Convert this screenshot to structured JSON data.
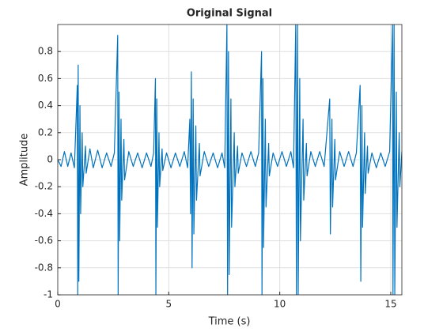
{
  "chart_data": {
    "type": "line",
    "title": "Original Signal",
    "x_label": "Time (s)",
    "y_label": "Amplitude",
    "xlim": [
      0,
      15.5
    ],
    "ylim": [
      -1,
      1
    ],
    "xticks": [
      0,
      5,
      10,
      15
    ],
    "yticks": [
      -1,
      -0.8,
      -0.6,
      -0.4,
      -0.2,
      0,
      0.2,
      0.4,
      0.6,
      0.8
    ],
    "grid": true,
    "series": [
      {
        "color": "#0072bd",
        "x": [
          0,
          0.15,
          0.3,
          0.45,
          0.6,
          0.75,
          0.88,
          0.9,
          0.92,
          0.95,
          1.0,
          1.03,
          1.1,
          1.13,
          1.25,
          1.28,
          1.45,
          1.6,
          1.8,
          2.0,
          2.2,
          2.4,
          2.55,
          2.7,
          2.72,
          2.76,
          2.79,
          2.85,
          2.88,
          2.98,
          3.01,
          3.2,
          3.4,
          3.6,
          3.8,
          4.0,
          4.2,
          4.32,
          4.4,
          4.42,
          4.46,
          4.49,
          4.56,
          4.59,
          4.7,
          4.73,
          4.9,
          5.1,
          5.3,
          5.5,
          5.7,
          5.85,
          5.95,
          5.98,
          6.02,
          6.05,
          6.1,
          6.13,
          6.22,
          6.25,
          6.38,
          6.41,
          6.6,
          6.8,
          7.0,
          7.2,
          7.4,
          7.52,
          7.62,
          7.65,
          7.69,
          7.72,
          7.8,
          7.83,
          7.95,
          7.98,
          8.1,
          8.13,
          8.3,
          8.5,
          8.7,
          8.9,
          9.05,
          9.18,
          9.2,
          9.24,
          9.27,
          9.35,
          9.38,
          9.5,
          9.53,
          9.7,
          9.9,
          10.1,
          10.3,
          10.5,
          10.62,
          10.72,
          10.75,
          10.8,
          10.83,
          10.9,
          10.93,
          11.05,
          11.08,
          11.2,
          11.23,
          11.4,
          11.6,
          11.8,
          12.0,
          12.25,
          12.28,
          12.35,
          12.38,
          12.48,
          12.51,
          12.7,
          12.9,
          13.1,
          13.3,
          13.45,
          13.62,
          13.65,
          13.7,
          13.73,
          13.82,
          13.85,
          13.95,
          13.98,
          14.15,
          14.35,
          14.55,
          14.75,
          14.95,
          15.08,
          15.1,
          15.15,
          15.18,
          15.25,
          15.28,
          15.38,
          15.41,
          15.5,
          15.55
        ],
        "values": [
          0,
          -0.05,
          0.06,
          -0.05,
          0.05,
          -0.06,
          0.55,
          -1,
          0.7,
          -0.9,
          0.4,
          -0.4,
          0.2,
          -0.2,
          0.1,
          -0.1,
          0.08,
          -0.06,
          0.07,
          -0.06,
          0.05,
          -0.05,
          0.05,
          0.92,
          -1,
          0.5,
          -0.6,
          0.3,
          -0.3,
          0.15,
          -0.15,
          0.06,
          -0.05,
          0.05,
          -0.06,
          0.05,
          -0.05,
          0.05,
          0.6,
          -1,
          0.45,
          -0.5,
          0.2,
          -0.2,
          0.08,
          -0.08,
          0.05,
          -0.06,
          0.05,
          -0.05,
          0.06,
          -0.06,
          0.3,
          -0.4,
          0.65,
          -0.8,
          0.45,
          -0.55,
          0.25,
          -0.3,
          0.12,
          -0.12,
          0.06,
          -0.05,
          0.05,
          -0.06,
          0.05,
          -0.06,
          1,
          -1,
          0.8,
          -0.85,
          0.45,
          -0.5,
          0.2,
          -0.2,
          0.1,
          -0.1,
          0.05,
          -0.05,
          0.06,
          -0.05,
          0.05,
          0.8,
          -1,
          0.6,
          -0.65,
          0.3,
          -0.35,
          0.12,
          -0.12,
          0.05,
          -0.05,
          0.06,
          -0.05,
          0.06,
          -0.06,
          1,
          -1,
          1,
          -1,
          0.6,
          -0.6,
          0.3,
          -0.3,
          0.12,
          -0.12,
          0.06,
          -0.05,
          0.06,
          -0.05,
          0.45,
          -0.55,
          0.3,
          -0.35,
          0.15,
          -0.15,
          0.06,
          -0.05,
          0.06,
          -0.05,
          0.05,
          0.55,
          -0.9,
          0.4,
          -0.5,
          0.2,
          -0.25,
          0.1,
          -0.1,
          0.05,
          -0.06,
          0.05,
          -0.05,
          0.06,
          1,
          -1,
          1,
          -1,
          0.5,
          -0.5,
          0.2,
          -0.2,
          0.06,
          -0.05
        ]
      }
    ]
  }
}
